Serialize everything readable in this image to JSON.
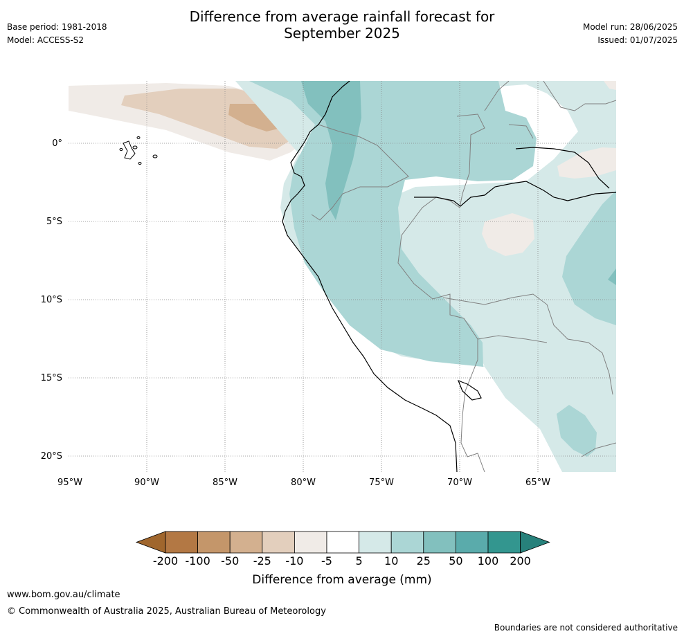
{
  "header": {
    "title_line1": "Difference from average rainfall forecast for",
    "title_line2": "September 2025",
    "base_period": "Base period: 1981-2018",
    "model": "Model: ACCESS-S2",
    "model_run": "Model run: 28/06/2025",
    "issued": "Issued: 01/07/2025"
  },
  "map": {
    "lat_labels": [
      "0°",
      "5°S",
      "10°S",
      "15°S",
      "20°S"
    ],
    "lon_labels": [
      "95°W",
      "90°W",
      "85°W",
      "80°W",
      "75°W",
      "70°W",
      "65°W"
    ],
    "extent": {
      "lon": [
        -95,
        -60
      ],
      "lat": [
        -21,
        4
      ]
    }
  },
  "legend": {
    "title": "Difference from average (mm)",
    "tick_labels": [
      "-200",
      "-100",
      "-50",
      "-25",
      "-10",
      "-5",
      "5",
      "10",
      "25",
      "50",
      "100",
      "200"
    ],
    "colors": [
      "#a0662d",
      "#b37844",
      "#c4966a",
      "#d3b08f",
      "#e3cfbd",
      "#f0ebe7",
      "#ffffff",
      "#d5e9e8",
      "#abd6d5",
      "#82c0be",
      "#5aabab",
      "#33968f",
      "#27817b"
    ]
  },
  "footer": {
    "url": "www.bom.gov.au/climate",
    "copyright": "© Commonwealth of Australia 2025, Australian Bureau of Meteorology",
    "disclaimer": "Boundaries are not considered authoritative"
  }
}
